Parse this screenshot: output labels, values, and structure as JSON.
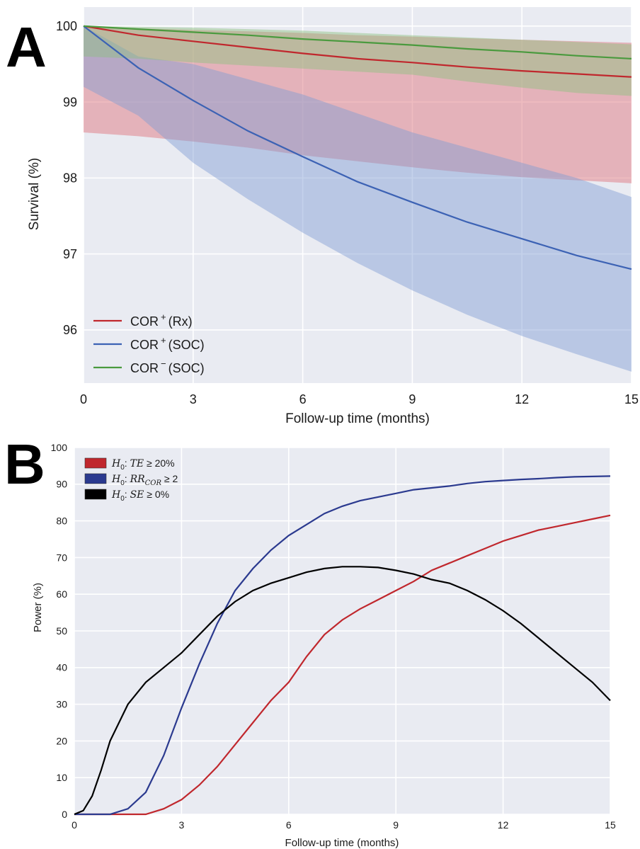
{
  "chart_data": [
    {
      "panel": "A",
      "type": "line",
      "xlabel": "Follow-up time (months)",
      "ylabel": "Survival (%)",
      "xlim": [
        0,
        15
      ],
      "ylim": [
        95.3,
        100.25
      ],
      "xticks": [
        0,
        3,
        6,
        9,
        12,
        15
      ],
      "yticks": [
        96,
        97,
        98,
        99,
        100
      ],
      "grid": true,
      "legend_position": "lower-left",
      "series": [
        {
          "name": "COR⁺ (Rx)",
          "legend_base": "COR",
          "legend_sup": "+",
          "legend_tail": "(Rx)",
          "color": "#c0272d",
          "band_color": "#e07a82",
          "band_opacity": 0.5,
          "x": [
            0,
            1.5,
            3,
            4.5,
            6,
            7.5,
            9,
            10.5,
            12,
            13.5,
            15
          ],
          "y": [
            100.0,
            99.88,
            99.8,
            99.72,
            99.64,
            99.57,
            99.52,
            99.46,
            99.41,
            99.37,
            99.33
          ],
          "lower": [
            98.6,
            98.55,
            98.48,
            98.4,
            98.3,
            98.22,
            98.14,
            98.07,
            98.01,
            97.97,
            97.93
          ],
          "upper": [
            100.0,
            99.97,
            99.95,
            99.93,
            99.91,
            99.88,
            99.86,
            99.84,
            99.82,
            99.8,
            99.78
          ]
        },
        {
          "name": "COR⁺ (SOC)",
          "legend_base": "COR",
          "legend_sup": "+",
          "legend_tail": "(SOC)",
          "color": "#3c62b4",
          "band_color": "#7f9bd3",
          "band_opacity": 0.45,
          "x": [
            0,
            1.5,
            3,
            4.5,
            6,
            7.5,
            9,
            10.5,
            12,
            13.5,
            15
          ],
          "y": [
            100.0,
            99.45,
            99.02,
            98.62,
            98.28,
            97.95,
            97.68,
            97.42,
            97.2,
            96.98,
            96.8
          ],
          "lower": [
            99.2,
            98.82,
            98.2,
            97.72,
            97.28,
            96.88,
            96.52,
            96.2,
            95.92,
            95.68,
            95.45
          ],
          "upper": [
            100.0,
            99.6,
            99.5,
            99.3,
            99.1,
            98.85,
            98.6,
            98.4,
            98.2,
            98.0,
            97.75
          ]
        },
        {
          "name": "COR⁻ (SOC)",
          "legend_base": "COR",
          "legend_sup": "−",
          "legend_tail": "(SOC)",
          "color": "#4a9a3e",
          "band_color": "#8cc07f",
          "band_opacity": 0.45,
          "x": [
            0,
            1.5,
            3,
            4.5,
            6,
            7.5,
            9,
            10.5,
            12,
            13.5,
            15
          ],
          "y": [
            100.0,
            99.96,
            99.92,
            99.88,
            99.83,
            99.79,
            99.75,
            99.7,
            99.66,
            99.61,
            99.57
          ],
          "lower": [
            99.6,
            99.57,
            99.52,
            99.48,
            99.44,
            99.4,
            99.36,
            99.27,
            99.19,
            99.12,
            99.08
          ],
          "upper": [
            100.0,
            99.99,
            99.98,
            99.96,
            99.94,
            99.91,
            99.88,
            99.85,
            99.82,
            99.79,
            99.76
          ]
        }
      ]
    },
    {
      "panel": "B",
      "type": "line",
      "xlabel": "Follow-up time (months)",
      "ylabel": "Power (%)",
      "xlim": [
        0,
        15
      ],
      "ylim": [
        0,
        100
      ],
      "xticks": [
        0,
        3,
        6,
        9,
        12,
        15
      ],
      "yticks": [
        0,
        10,
        20,
        30,
        40,
        50,
        60,
        70,
        80,
        90,
        100
      ],
      "grid": true,
      "legend_position": "top-left",
      "series": [
        {
          "name": "H0: TE ≥ 20%",
          "legend_parts": {
            "h": "H",
            "sub": "0",
            "colon": ": ",
            "stat": "TE",
            "sub2": "",
            "op": " ≥ ",
            "val": "20%"
          },
          "color": "#c0272d",
          "x": [
            0,
            2,
            2.5,
            3,
            3.5,
            4,
            4.5,
            5,
            5.5,
            6,
            6.5,
            7,
            7.5,
            8,
            8.5,
            9,
            9.5,
            10,
            10.5,
            11,
            11.5,
            12,
            12.5,
            13,
            13.5,
            14,
            14.5,
            15
          ],
          "y": [
            0,
            0,
            1.5,
            4,
            8,
            13,
            19,
            25,
            31,
            36,
            43,
            49,
            53,
            56,
            58.5,
            61,
            63.5,
            66.5,
            68.5,
            70.5,
            72.5,
            74.5,
            76,
            77.5,
            78.5,
            79.5,
            80.5,
            81.5
          ]
        },
        {
          "name": "H0: RR_COR ≥ 2",
          "legend_parts": {
            "h": "H",
            "sub": "0",
            "colon": ": ",
            "stat": "RR",
            "sub2": "COR",
            "op": " ≥ ",
            "val": "2"
          },
          "color": "#2b3a8f",
          "x": [
            0,
            1,
            1.5,
            2,
            2.5,
            3,
            3.5,
            4,
            4.5,
            5,
            5.5,
            6,
            6.5,
            7,
            7.5,
            8,
            8.5,
            9,
            9.5,
            10,
            10.5,
            11,
            11.5,
            12,
            12.5,
            13,
            13.5,
            14,
            14.5,
            15
          ],
          "y": [
            0,
            0,
            1.5,
            6,
            16,
            29,
            41,
            52,
            61,
            67,
            72,
            76,
            79,
            82,
            84,
            85.5,
            86.5,
            87.5,
            88.5,
            89,
            89.5,
            90.2,
            90.7,
            91,
            91.3,
            91.5,
            91.8,
            92,
            92.1,
            92.2
          ]
        },
        {
          "name": "H0: SE ≥ 0%",
          "legend_parts": {
            "h": "H",
            "sub": "0",
            "colon": ": ",
            "stat": "SE",
            "sub2": "",
            "op": " ≥ ",
            "val": "0%"
          },
          "color": "#000000",
          "x": [
            0,
            0.25,
            0.5,
            0.75,
            1,
            1.5,
            2,
            2.5,
            3,
            3.5,
            4,
            4.5,
            5,
            5.5,
            6,
            6.5,
            7,
            7.5,
            8,
            8.5,
            9,
            9.5,
            10,
            10.5,
            11,
            11.5,
            12,
            12.5,
            13,
            13.5,
            14,
            14.5,
            15
          ],
          "y": [
            0,
            1,
            5,
            12,
            20,
            30,
            36,
            40,
            44,
            49,
            54,
            58,
            61,
            63,
            64.5,
            66,
            67,
            67.5,
            67.5,
            67.3,
            66.5,
            65.5,
            64,
            63,
            61,
            58.5,
            55.5,
            52,
            48,
            44,
            40,
            36,
            31
          ]
        }
      ]
    }
  ],
  "panels": {
    "a": {
      "letter": "A",
      "xlabel": "Follow-up time (months)",
      "ylabel": "Survival (%)"
    },
    "b": {
      "letter": "B",
      "xlabel": "Follow-up time (months)",
      "ylabel": "Power (%)"
    }
  },
  "colors": {
    "plot_bg": "#e9ebf2",
    "grid": "#ffffff"
  }
}
